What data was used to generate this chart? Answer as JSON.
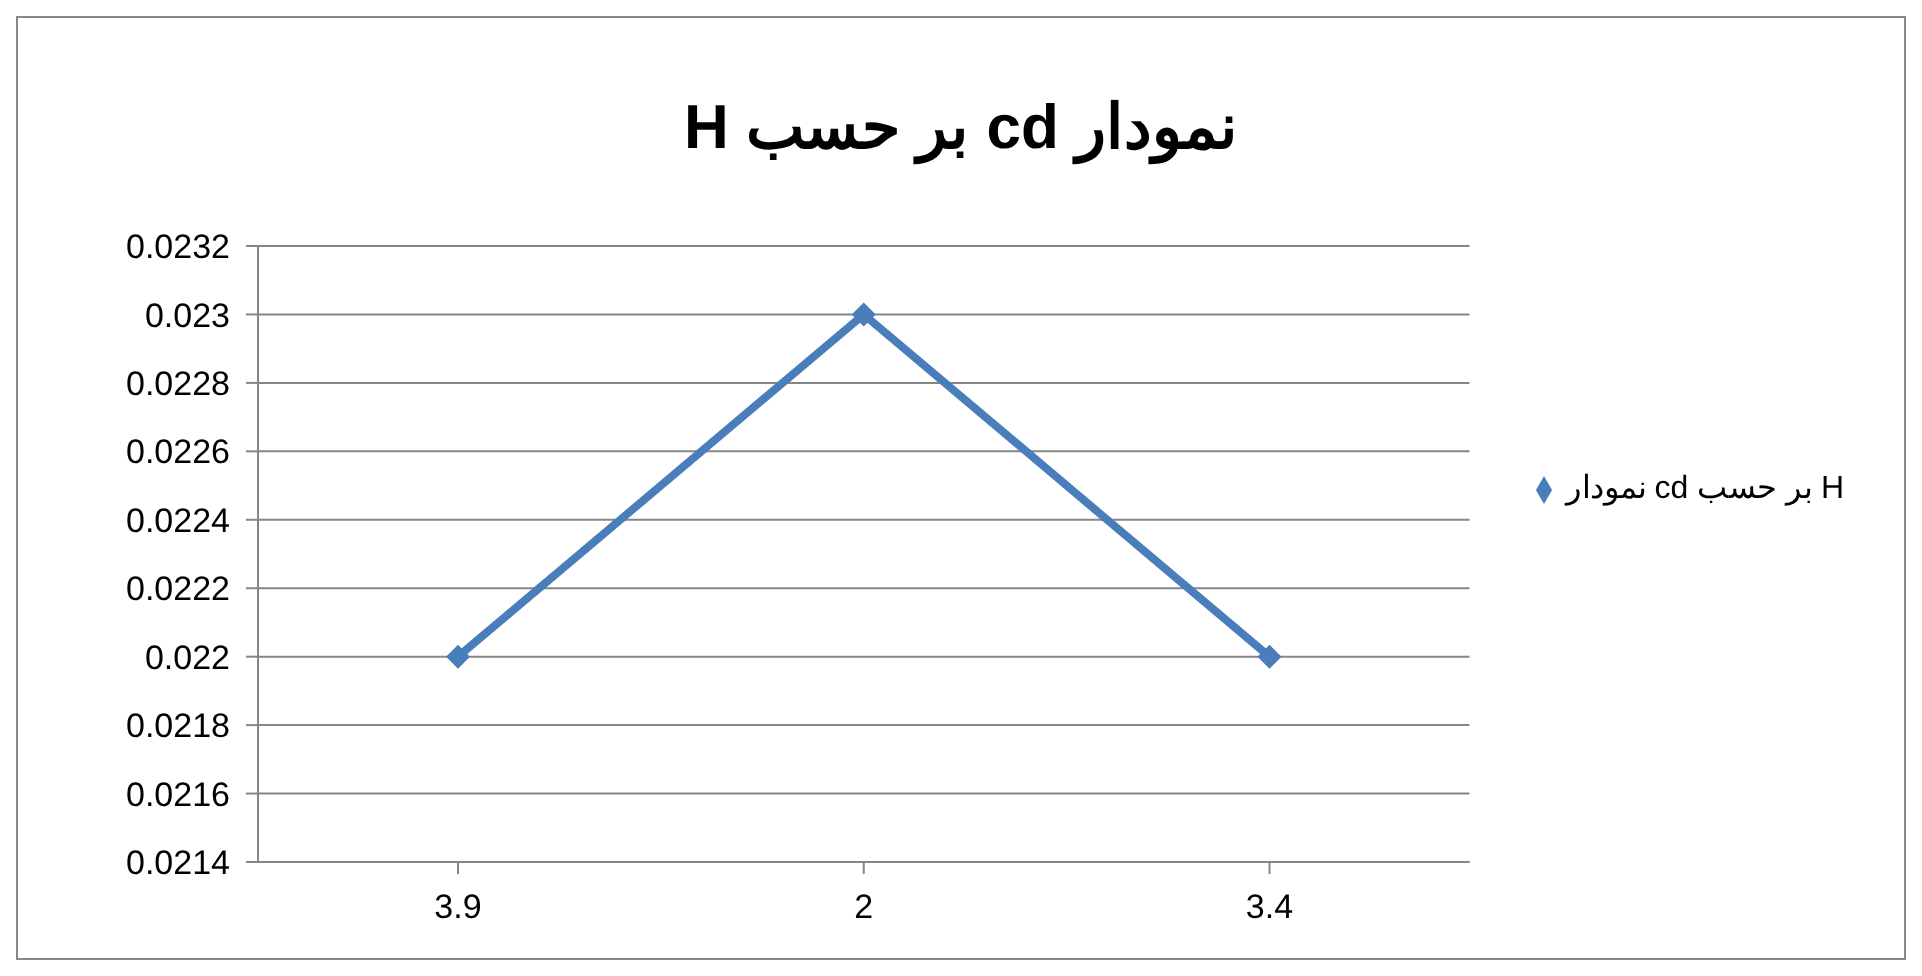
{
  "chart_data": {
    "type": "line",
    "title": "نمودار cd بر حسب H",
    "categories": [
      "3.9",
      "2",
      "3.4"
    ],
    "series": [
      {
        "name": "نمودار cd بر حسب H",
        "color": "#4a7ebb",
        "values": [
          0.022,
          0.023,
          0.022
        ]
      }
    ],
    "ylim": [
      0.0214,
      0.0232
    ],
    "yticks": [
      0.0214,
      0.0216,
      0.0218,
      0.022,
      0.0222,
      0.0224,
      0.0226,
      0.0228,
      0.023,
      0.0232
    ],
    "grid": "y",
    "legend": "right",
    "marker": "diamond",
    "line_style": "solid"
  }
}
